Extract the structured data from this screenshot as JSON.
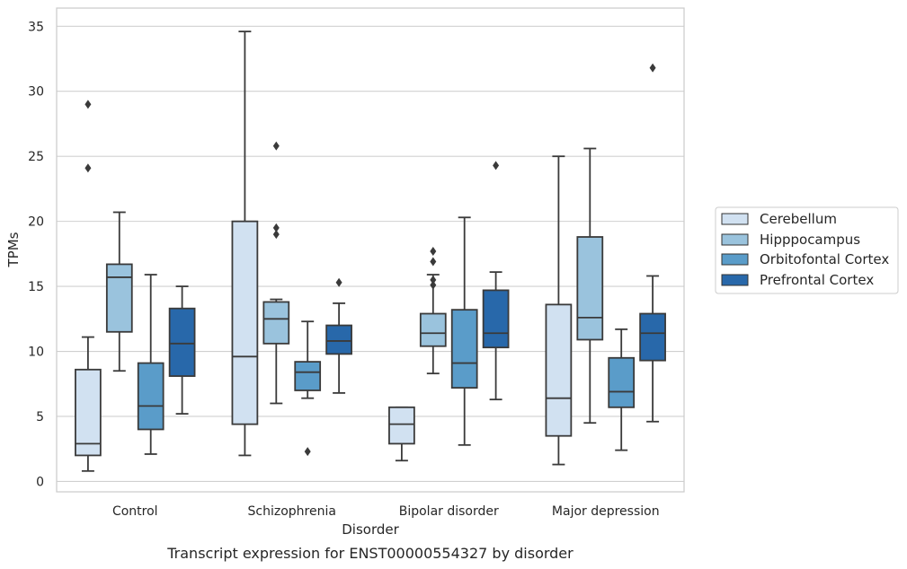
{
  "chart_data": {
    "type": "boxplot",
    "caption": "Transcript expression for ENST00000554327 by disorder",
    "xlabel": "Disorder",
    "ylabel": "TPMs",
    "ylim": [
      -0.8,
      36.4
    ],
    "yticks": [
      0,
      5,
      10,
      15,
      20,
      25,
      30,
      35
    ],
    "grid": true,
    "legend_position": "right-outside",
    "categories": [
      "Control",
      "Schizophrenia",
      "Bipolar disorder",
      "Major depression"
    ],
    "series": [
      {
        "name": "Cerebellum",
        "color": "#d1e1f1",
        "boxes": [
          {
            "whislo": 0.8,
            "q1": 2.0,
            "med": 2.9,
            "q3": 8.6,
            "whishi": 11.1,
            "fliers": [
              24.1,
              29.0
            ]
          },
          {
            "whislo": 2.0,
            "q1": 4.4,
            "med": 9.6,
            "q3": 20.0,
            "whishi": 34.6,
            "fliers": []
          },
          {
            "whislo": 1.6,
            "q1": 2.9,
            "med": 4.4,
            "q3": 5.7,
            "whishi": 5.7,
            "fliers": []
          },
          {
            "whislo": 1.3,
            "q1": 3.5,
            "med": 6.4,
            "q3": 13.6,
            "whishi": 25.0,
            "fliers": []
          }
        ]
      },
      {
        "name": "Hipppocampus",
        "color": "#9ac3dd",
        "boxes": [
          {
            "whislo": 8.5,
            "q1": 11.5,
            "med": 15.7,
            "q3": 16.7,
            "whishi": 20.7,
            "fliers": []
          },
          {
            "whislo": 6.0,
            "q1": 10.6,
            "med": 12.5,
            "q3": 13.8,
            "whishi": 14.0,
            "fliers": [
              19.0,
              19.5,
              25.8
            ]
          },
          {
            "whislo": 8.3,
            "q1": 10.4,
            "med": 11.4,
            "q3": 12.9,
            "whishi": 15.9,
            "fliers": [
              15.1,
              15.5,
              16.9,
              17.7
            ]
          },
          {
            "whislo": 4.5,
            "q1": 10.9,
            "med": 12.6,
            "q3": 18.8,
            "whishi": 25.6,
            "fliers": []
          }
        ]
      },
      {
        "name": "Orbitofontal Cortex",
        "color": "#5a9cc9",
        "boxes": [
          {
            "whislo": 2.1,
            "q1": 4.0,
            "med": 5.8,
            "q3": 9.1,
            "whishi": 15.9,
            "fliers": []
          },
          {
            "whislo": 6.4,
            "q1": 7.0,
            "med": 8.4,
            "q3": 9.2,
            "whishi": 12.3,
            "fliers": [
              2.3
            ]
          },
          {
            "whislo": 2.8,
            "q1": 7.2,
            "med": 9.1,
            "q3": 13.2,
            "whishi": 20.3,
            "fliers": []
          },
          {
            "whislo": 2.4,
            "q1": 5.7,
            "med": 6.9,
            "q3": 9.5,
            "whishi": 11.7,
            "fliers": []
          }
        ]
      },
      {
        "name": "Prefrontal Cortex",
        "color": "#2868aa",
        "boxes": [
          {
            "whislo": 5.2,
            "q1": 8.1,
            "med": 10.6,
            "q3": 13.3,
            "whishi": 15.0,
            "fliers": []
          },
          {
            "whislo": 6.8,
            "q1": 9.8,
            "med": 10.8,
            "q3": 12.0,
            "whishi": 13.7,
            "fliers": [
              15.3
            ]
          },
          {
            "whislo": 6.3,
            "q1": 10.3,
            "med": 11.4,
            "q3": 14.7,
            "whishi": 16.1,
            "fliers": [
              24.3
            ]
          },
          {
            "whislo": 4.6,
            "q1": 9.3,
            "med": 11.4,
            "q3": 12.9,
            "whishi": 15.8,
            "fliers": [
              31.8
            ]
          }
        ]
      }
    ]
  }
}
